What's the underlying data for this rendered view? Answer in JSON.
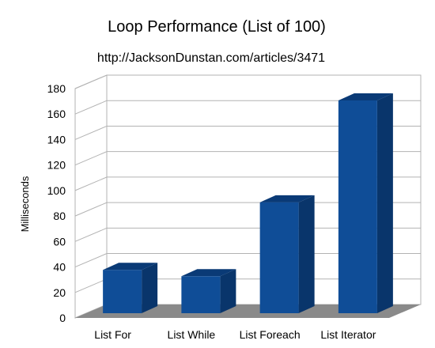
{
  "chart_data": {
    "type": "bar",
    "title": "Loop Performance (List of 100)",
    "subtitle": "http://JacksonDunstan.com/articles/3471",
    "xlabel": "",
    "ylabel": "Milliseconds",
    "categories": [
      "List For",
      "List While",
      "List Foreach",
      "List Iterator"
    ],
    "values": [
      34,
      29,
      87,
      167
    ],
    "ylim": [
      0,
      180
    ],
    "yticks": [
      "0",
      "20",
      "40",
      "60",
      "80",
      "100",
      "120",
      "140",
      "160",
      "180"
    ],
    "grid": true,
    "three_d": true,
    "legend": "none",
    "colors": {
      "bar_front": "#0f4d97",
      "bar_side": "#09356b",
      "bar_top": "#0a3a76",
      "floor": "#8a8a8a",
      "grid": "#b3b3b3",
      "wall": "#ffffff"
    }
  }
}
